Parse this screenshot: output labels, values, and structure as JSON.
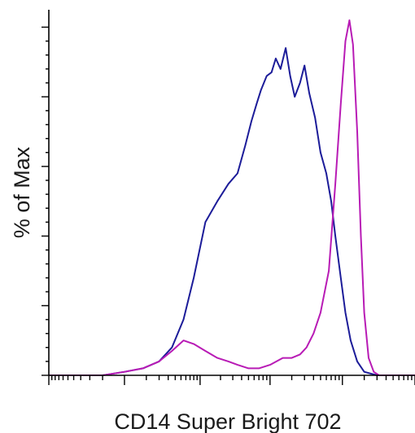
{
  "chart_data": {
    "type": "line",
    "title": "",
    "xlabel": "CD14 Super Bright 702",
    "ylabel": "% of Max",
    "x_scale": "log",
    "xlim": [
      -1000,
      1000000
    ],
    "ylim": [
      0,
      105
    ],
    "grid": false,
    "legend": "none",
    "tick_labels_shown": false,
    "series": [
      {
        "color": "#1c1c99",
        "x": [
          -1000,
          -300,
          -100,
          0,
          80,
          200,
          350,
          550,
          800,
          1200,
          1800,
          2600,
          3500,
          4500,
          5500,
          6500,
          7500,
          9000,
          10500,
          12000,
          14000,
          16500,
          19000,
          22000,
          26000,
          30000,
          35000,
          42000,
          50000,
          60000,
          70000,
          80000,
          95000,
          110000,
          130000,
          160000,
          200000,
          300000,
          1000000
        ],
        "y": [
          0,
          0,
          0,
          1,
          2,
          4,
          8,
          16,
          28,
          44,
          50,
          55,
          58,
          66,
          73,
          78,
          82,
          86,
          87,
          91,
          88,
          94,
          86,
          80,
          84,
          89,
          81,
          74,
          64,
          58,
          50,
          40,
          28,
          18,
          10,
          4,
          1,
          0,
          0
        ]
      },
      {
        "color": "#b81bb5",
        "x": [
          -1000,
          -300,
          -100,
          0,
          80,
          200,
          350,
          550,
          800,
          1200,
          1800,
          2600,
          3500,
          5000,
          7000,
          10000,
          15000,
          20000,
          26000,
          32000,
          40000,
          50000,
          65000,
          80000,
          95000,
          110000,
          125000,
          140000,
          160000,
          180000,
          200000,
          230000,
          270000,
          320000,
          400000,
          1000000
        ],
        "y": [
          0,
          0,
          0,
          1,
          2,
          4,
          7,
          10,
          9,
          7,
          5,
          4,
          3,
          2,
          2,
          3,
          5,
          5,
          6,
          8,
          12,
          18,
          30,
          55,
          78,
          96,
          102,
          95,
          70,
          40,
          18,
          5,
          1,
          0,
          0,
          0
        ]
      }
    ]
  }
}
